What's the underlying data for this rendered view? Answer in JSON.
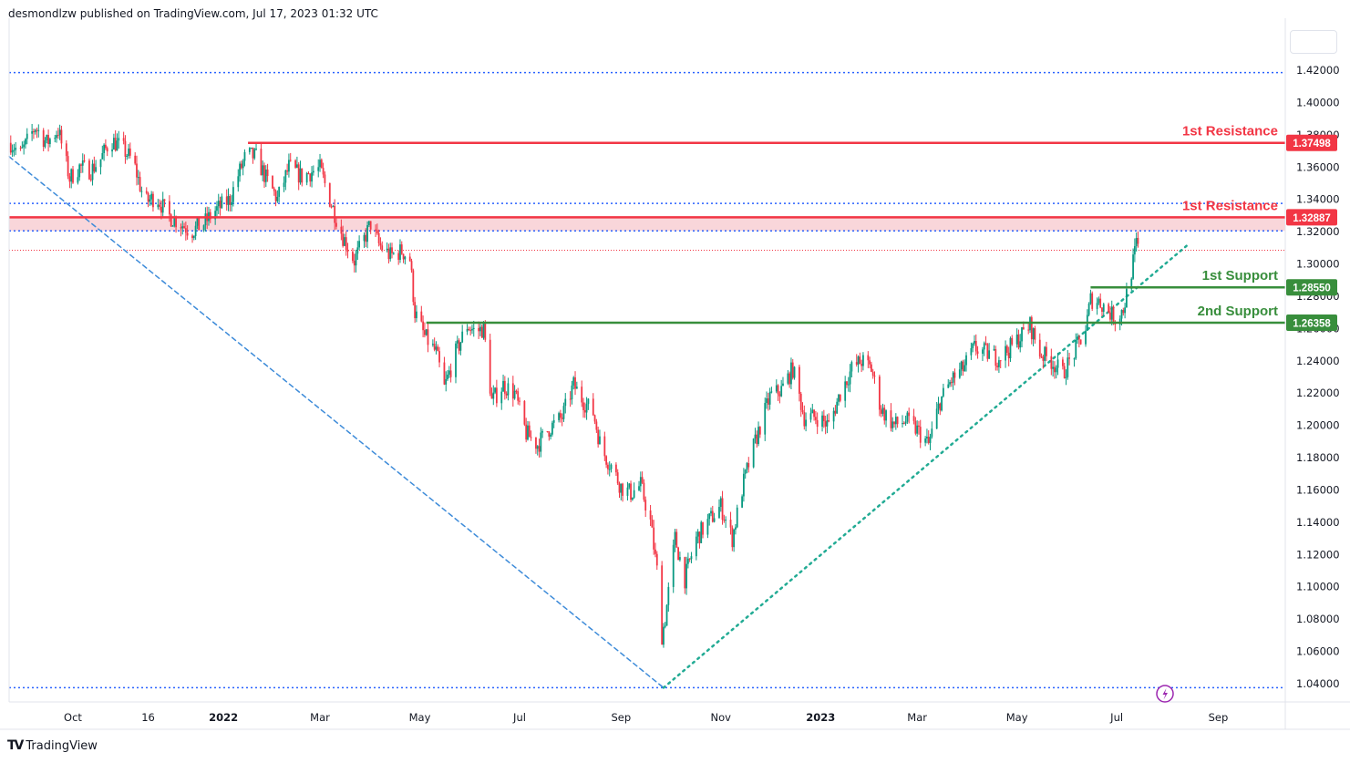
{
  "header": {
    "publisher_text": "desmondlzw published on TradingView.com, Jul 17, 2023 01:32 UTC"
  },
  "footer": {
    "brand": "TradingView",
    "logo_icon": "tradingview-logo-icon"
  },
  "colors": {
    "resistance": "#f23645",
    "support": "#388e3c",
    "bull": "#089981",
    "bear": "#f23645",
    "trend_down": "#2962ff",
    "trend_up": "#22ab94",
    "zone": "#f9d6da",
    "dotted_blue": "#2962ff",
    "price_axis_text": "#131722",
    "badge_text": "#ffffff"
  },
  "chart_data": {
    "type": "candlestick",
    "title": "",
    "ylim": [
      1.03,
      1.43
    ],
    "y_ticks": [
      {
        "v": 1.42,
        "label": "1.42000"
      },
      {
        "v": 1.4,
        "label": "1.40000"
      },
      {
        "v": 1.38,
        "label": "1.38000"
      },
      {
        "v": 1.36,
        "label": "1.36000"
      },
      {
        "v": 1.34,
        "label": "1.34000"
      },
      {
        "v": 1.32,
        "label": "1.32000"
      },
      {
        "v": 1.3,
        "label": "1.30000"
      },
      {
        "v": 1.28,
        "label": "1.28000"
      },
      {
        "v": 1.26,
        "label": "1.26000"
      },
      {
        "v": 1.24,
        "label": "1.24000"
      },
      {
        "v": 1.22,
        "label": "1.22000"
      },
      {
        "v": 1.2,
        "label": "1.20000"
      },
      {
        "v": 1.18,
        "label": "1.18000"
      },
      {
        "v": 1.16,
        "label": "1.16000"
      },
      {
        "v": 1.14,
        "label": "1.14000"
      },
      {
        "v": 1.12,
        "label": "1.12000"
      },
      {
        "v": 1.1,
        "label": "1.10000"
      },
      {
        "v": 1.08,
        "label": "1.08000"
      },
      {
        "v": 1.06,
        "label": "1.06000"
      },
      {
        "v": 1.04,
        "label": "1.04000"
      }
    ],
    "x_ticks": [
      {
        "date": "2021-10-01",
        "label": "Oct",
        "bold": false
      },
      {
        "date": "2021-11-16",
        "label": "16",
        "bold": false
      },
      {
        "date": "2022-01-01",
        "label": "2022",
        "bold": true
      },
      {
        "date": "2022-03-01",
        "label": "Mar",
        "bold": false
      },
      {
        "date": "2022-05-01",
        "label": "May",
        "bold": false
      },
      {
        "date": "2022-07-01",
        "label": "Jul",
        "bold": false
      },
      {
        "date": "2022-09-01",
        "label": "Sep",
        "bold": false
      },
      {
        "date": "2022-11-01",
        "label": "Nov",
        "bold": false
      },
      {
        "date": "2023-01-01",
        "label": "2023",
        "bold": true
      },
      {
        "date": "2023-03-01",
        "label": "Mar",
        "bold": false
      },
      {
        "date": "2023-05-01",
        "label": "May",
        "bold": false
      },
      {
        "date": "2023-07-01",
        "label": "Jul",
        "bold": false
      },
      {
        "date": "2023-09-01",
        "label": "Sep",
        "bold": false
      }
    ],
    "xlim": [
      "2021-08-23",
      "2023-10-12"
    ],
    "price_path": [
      [
        "2021-08-24",
        1.375
      ],
      [
        "2021-08-30",
        1.368
      ],
      [
        "2021-09-08",
        1.385
      ],
      [
        "2021-09-15",
        1.375
      ],
      [
        "2021-09-22",
        1.383
      ],
      [
        "2021-09-29",
        1.353
      ],
      [
        "2021-10-05",
        1.36
      ],
      [
        "2021-10-12",
        1.358
      ],
      [
        "2021-10-18",
        1.365
      ],
      [
        "2021-10-24",
        1.377
      ],
      [
        "2021-10-31",
        1.372
      ],
      [
        "2021-11-07",
        1.363
      ],
      [
        "2021-11-14",
        1.338
      ],
      [
        "2021-11-21",
        1.342
      ],
      [
        "2021-11-28",
        1.33
      ],
      [
        "2021-12-05",
        1.326
      ],
      [
        "2021-12-12",
        1.32
      ],
      [
        "2021-12-20",
        1.325
      ],
      [
        "2021-12-27",
        1.333
      ],
      [
        "2022-01-05",
        1.34
      ],
      [
        "2022-01-10",
        1.355
      ],
      [
        "2022-01-15",
        1.368
      ],
      [
        "2022-01-21",
        1.366
      ],
      [
        "2022-01-27",
        1.353
      ],
      [
        "2022-02-03",
        1.34
      ],
      [
        "2022-02-10",
        1.36
      ],
      [
        "2022-02-18",
        1.354
      ],
      [
        "2022-02-24",
        1.357
      ],
      [
        "2022-03-01",
        1.359
      ],
      [
        "2022-03-07",
        1.34
      ],
      [
        "2022-03-15",
        1.317
      ],
      [
        "2022-03-22",
        1.302
      ],
      [
        "2022-03-27",
        1.313
      ],
      [
        "2022-04-01",
        1.325
      ],
      [
        "2022-04-06",
        1.312
      ],
      [
        "2022-04-13",
        1.305
      ],
      [
        "2022-04-20",
        1.308
      ],
      [
        "2022-04-25",
        1.303
      ],
      [
        "2022-04-28",
        1.27
      ],
      [
        "2022-05-04",
        1.255
      ],
      [
        "2022-05-11",
        1.245
      ],
      [
        "2022-05-16",
        1.223
      ],
      [
        "2022-05-23",
        1.245
      ],
      [
        "2022-05-30",
        1.262
      ],
      [
        "2022-06-04",
        1.258
      ],
      [
        "2022-06-09",
        1.26
      ],
      [
        "2022-06-14",
        1.215
      ],
      [
        "2022-06-21",
        1.225
      ],
      [
        "2022-06-28",
        1.22
      ],
      [
        "2022-07-05",
        1.195
      ],
      [
        "2022-07-12",
        1.188
      ],
      [
        "2022-07-19",
        1.198
      ],
      [
        "2022-07-27",
        1.205
      ],
      [
        "2022-08-03",
        1.225
      ],
      [
        "2022-08-09",
        1.215
      ],
      [
        "2022-08-15",
        1.208
      ],
      [
        "2022-08-20",
        1.185
      ],
      [
        "2022-08-26",
        1.175
      ],
      [
        "2022-09-01",
        1.162
      ],
      [
        "2022-09-07",
        1.158
      ],
      [
        "2022-09-13",
        1.163
      ],
      [
        "2022-09-19",
        1.14
      ],
      [
        "2022-09-23",
        1.11
      ],
      [
        "2022-09-26",
        1.07
      ],
      [
        "2022-09-28",
        1.08
      ],
      [
        "2022-10-04",
        1.13
      ],
      [
        "2022-10-10",
        1.105
      ],
      [
        "2022-10-17",
        1.13
      ],
      [
        "2022-10-24",
        1.14
      ],
      [
        "2022-11-01",
        1.15
      ],
      [
        "2022-11-08",
        1.13
      ],
      [
        "2022-11-15",
        1.165
      ],
      [
        "2022-11-22",
        1.19
      ],
      [
        "2022-12-01",
        1.218
      ],
      [
        "2022-12-08",
        1.222
      ],
      [
        "2022-12-15",
        1.235
      ],
      [
        "2022-12-22",
        1.205
      ],
      [
        "2022-12-30",
        1.205
      ],
      [
        "2023-01-06",
        1.2
      ],
      [
        "2023-01-13",
        1.22
      ],
      [
        "2023-01-20",
        1.235
      ],
      [
        "2023-01-26",
        1.24
      ],
      [
        "2023-02-01",
        1.235
      ],
      [
        "2023-02-07",
        1.21
      ],
      [
        "2023-02-15",
        1.2
      ],
      [
        "2023-02-22",
        1.203
      ],
      [
        "2023-03-01",
        1.197
      ],
      [
        "2023-03-08",
        1.188
      ],
      [
        "2023-03-15",
        1.215
      ],
      [
        "2023-03-22",
        1.228
      ],
      [
        "2023-03-29",
        1.235
      ],
      [
        "2023-04-05",
        1.248
      ],
      [
        "2023-04-12",
        1.245
      ],
      [
        "2023-04-19",
        1.242
      ],
      [
        "2023-04-26",
        1.247
      ],
      [
        "2023-05-03",
        1.255
      ],
      [
        "2023-05-09",
        1.262
      ],
      [
        "2023-05-15",
        1.245
      ],
      [
        "2023-05-22",
        1.24
      ],
      [
        "2023-05-29",
        1.232
      ],
      [
        "2023-06-05",
        1.245
      ],
      [
        "2023-06-12",
        1.26
      ],
      [
        "2023-06-15",
        1.278
      ],
      [
        "2023-06-20",
        1.277
      ],
      [
        "2023-06-25",
        1.272
      ],
      [
        "2023-06-30",
        1.266
      ],
      [
        "2023-07-05",
        1.272
      ],
      [
        "2023-07-09",
        1.29
      ],
      [
        "2023-07-13",
        1.312
      ],
      [
        "2023-07-15",
        1.3095
      ]
    ],
    "horizontal_levels": [
      {
        "name": "1st Resistance",
        "value": 1.37498,
        "price_label": "1.37498",
        "start": "2022-01-16",
        "role": "resistance"
      },
      {
        "name": "1st Resistance",
        "value": 1.32887,
        "price_label": "1.32887",
        "start": "2021-08-23",
        "role": "resistance"
      },
      {
        "name": "1st Support",
        "value": 1.2855,
        "price_label": "1.28550",
        "start": "2023-06-15",
        "role": "support"
      },
      {
        "name": "2nd Support",
        "value": 1.26358,
        "price_label": "1.26358",
        "start": "2022-05-05",
        "role": "support"
      }
    ],
    "resistance_zone": {
      "top": 1.32887,
      "bottom": 1.3205
    },
    "dotted_levels": [
      1.4185,
      1.3375,
      1.3205,
      1.3085,
      1.0375
    ],
    "trendlines": [
      {
        "name": "downtrend",
        "style": "dashed",
        "from": [
          "2021-08-23",
          1.3665
        ],
        "to": [
          "2022-09-27",
          1.0375
        ]
      },
      {
        "name": "uptrend",
        "style": "dotted",
        "from": [
          "2022-09-27",
          1.0375
        ],
        "to": [
          "2023-08-13",
          1.3115
        ]
      }
    ]
  }
}
